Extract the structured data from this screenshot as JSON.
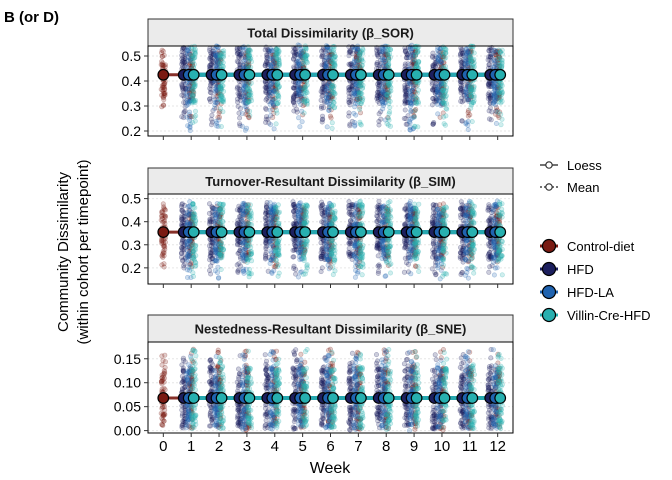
{
  "figure": {
    "panel_label": "B (or D)",
    "ylabel_lines": [
      "Community Dissimilarity",
      "(within cohort per timepoint)"
    ],
    "xlabel": "Week"
  },
  "legend": {
    "lines": [
      {
        "label": "Loess",
        "style": "solid"
      },
      {
        "label": "Mean",
        "style": "dotted"
      }
    ],
    "groups": [
      {
        "label": "Control-diet",
        "color": "#7a1a12"
      },
      {
        "label": "HFD",
        "color": "#1c1f5e"
      },
      {
        "label": "HFD-LA",
        "color": "#1f63b0"
      },
      {
        "label": "Villin-Cre-HFD",
        "color": "#27b0b0"
      }
    ]
  },
  "chart_data": [
    {
      "type": "scatter",
      "title": "Total Dissimilarity (β_SOR)",
      "xlabel": "Week",
      "x": [
        0,
        1,
        2,
        3,
        4,
        5,
        6,
        7,
        8,
        9,
        10,
        11,
        12
      ],
      "xticks": [
        "0",
        "1",
        "2",
        "3",
        "4",
        "5",
        "6",
        "7",
        "8",
        "9",
        "10",
        "11",
        "12"
      ],
      "ylim": [
        0.18,
        0.54
      ],
      "yticks": [
        0.2,
        0.3,
        0.4,
        0.5
      ],
      "ytick_labels": [
        "0.2",
        "0.3",
        "0.4",
        "0.5"
      ],
      "grid": true,
      "series": [
        {
          "name": "Control-diet",
          "values": [
            0.425,
            0.425,
            0.425,
            0.425,
            0.425,
            0.425,
            0.425,
            0.425,
            0.425,
            0.425,
            0.425,
            0.425,
            0.425
          ],
          "spread": [
            0.25,
            0.52
          ]
        },
        {
          "name": "HFD",
          "values": [
            null,
            0.425,
            0.425,
            0.425,
            0.425,
            0.425,
            0.425,
            0.425,
            0.425,
            0.425,
            0.425,
            0.425,
            0.425
          ],
          "spread": [
            0.22,
            0.52
          ]
        },
        {
          "name": "HFD-LA",
          "values": [
            null,
            0.425,
            0.425,
            0.425,
            0.425,
            0.425,
            0.425,
            0.425,
            0.425,
            0.425,
            0.425,
            0.425,
            0.425
          ],
          "spread": [
            0.2,
            0.52
          ]
        },
        {
          "name": "Villin-Cre-HFD",
          "values": [
            null,
            0.425,
            0.425,
            0.425,
            0.425,
            0.425,
            0.425,
            0.425,
            0.425,
            0.425,
            0.425,
            0.425,
            0.425
          ],
          "spread": [
            0.21,
            0.52
          ]
        }
      ]
    },
    {
      "type": "scatter",
      "title": "Turnover-Resultant Dissimilarity (β_SIM)",
      "xlabel": "Week",
      "x": [
        0,
        1,
        2,
        3,
        4,
        5,
        6,
        7,
        8,
        9,
        10,
        11,
        12
      ],
      "xticks": [
        "0",
        "1",
        "2",
        "3",
        "4",
        "5",
        "6",
        "7",
        "8",
        "9",
        "10",
        "11",
        "12"
      ],
      "ylim": [
        0.13,
        0.52
      ],
      "yticks": [
        0.2,
        0.3,
        0.4,
        0.5
      ],
      "ytick_labels": [
        "0.2",
        "0.3",
        "0.4",
        "0.5"
      ],
      "grid": true,
      "series": [
        {
          "name": "Control-diet",
          "values": [
            0.355,
            0.355,
            0.355,
            0.355,
            0.355,
            0.355,
            0.355,
            0.355,
            0.355,
            0.355,
            0.355,
            0.355,
            0.355
          ],
          "spread": [
            0.2,
            0.48
          ]
        },
        {
          "name": "HFD",
          "values": [
            null,
            0.355,
            0.355,
            0.355,
            0.355,
            0.355,
            0.355,
            0.355,
            0.355,
            0.355,
            0.355,
            0.355,
            0.355
          ],
          "spread": [
            0.17,
            0.49
          ]
        },
        {
          "name": "HFD-LA",
          "values": [
            null,
            0.355,
            0.355,
            0.355,
            0.355,
            0.355,
            0.355,
            0.355,
            0.355,
            0.355,
            0.355,
            0.355,
            0.355
          ],
          "spread": [
            0.15,
            0.49
          ]
        },
        {
          "name": "Villin-Cre-HFD",
          "values": [
            null,
            0.355,
            0.355,
            0.355,
            0.355,
            0.355,
            0.355,
            0.355,
            0.355,
            0.355,
            0.355,
            0.355,
            0.355
          ],
          "spread": [
            0.16,
            0.49
          ]
        }
      ]
    },
    {
      "type": "scatter",
      "title": "Nestedness-Resultant Dissimilarity (β_SNE)",
      "xlabel": "Week",
      "x": [
        0,
        1,
        2,
        3,
        4,
        5,
        6,
        7,
        8,
        9,
        10,
        11,
        12
      ],
      "xticks": [
        "0",
        "1",
        "2",
        "3",
        "4",
        "5",
        "6",
        "7",
        "8",
        "9",
        "10",
        "11",
        "12"
      ],
      "ylim": [
        -0.005,
        0.185
      ],
      "yticks": [
        0.0,
        0.05,
        0.1,
        0.15
      ],
      "ytick_labels": [
        "0.00",
        "0.05",
        "0.10",
        "0.15"
      ],
      "grid": true,
      "series": [
        {
          "name": "Control-diet",
          "values": [
            0.068,
            0.068,
            0.068,
            0.068,
            0.068,
            0.068,
            0.068,
            0.068,
            0.068,
            0.068,
            0.068,
            0.068,
            0.068
          ],
          "spread": [
            0.0,
            0.17
          ]
        },
        {
          "name": "HFD",
          "values": [
            null,
            0.068,
            0.068,
            0.068,
            0.068,
            0.068,
            0.068,
            0.068,
            0.068,
            0.068,
            0.068,
            0.068,
            0.068
          ],
          "spread": [
            0.0,
            0.17
          ]
        },
        {
          "name": "HFD-LA",
          "values": [
            null,
            0.068,
            0.068,
            0.068,
            0.068,
            0.068,
            0.068,
            0.068,
            0.068,
            0.068,
            0.068,
            0.068,
            0.068
          ],
          "spread": [
            0.0,
            0.17
          ]
        },
        {
          "name": "Villin-Cre-HFD",
          "values": [
            null,
            0.068,
            0.068,
            0.068,
            0.068,
            0.068,
            0.068,
            0.068,
            0.068,
            0.068,
            0.068,
            0.068,
            0.068
          ],
          "spread": [
            0.0,
            0.17
          ]
        }
      ]
    }
  ]
}
